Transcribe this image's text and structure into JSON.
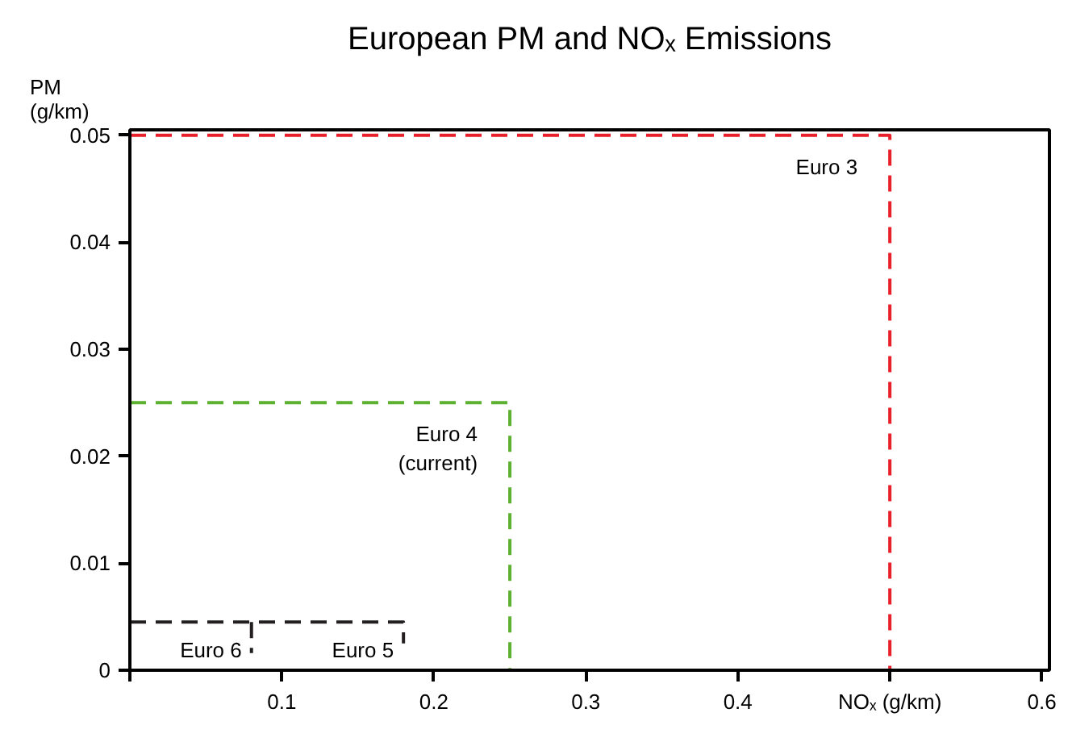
{
  "chart_data": {
    "type": "line",
    "title": "European PM and NOₓ Emissions",
    "ylabel": "PM (g/km)",
    "xlim": [
      0,
      0.605
    ],
    "ylim": [
      0,
      0.0505
    ],
    "xticks": [
      {
        "value": 0,
        "label": null
      },
      0.1,
      0.2,
      0.3,
      0.4,
      {
        "value": 0.5,
        "label": "NOₓ (g/km)"
      },
      0.6
    ],
    "yticks": [
      0,
      0.01,
      0.02,
      0.03,
      0.04,
      0.05
    ],
    "grid": false,
    "line_style": "dashed",
    "marker": "none",
    "series": [
      {
        "name": "Euro 3",
        "color": "#e8202a",
        "x": [
          0,
          0.5,
          0.5
        ],
        "values": [
          0.05,
          0.05,
          0
        ]
      },
      {
        "name": "Euro 4\n(current)",
        "color": "#5db030",
        "x": [
          0,
          0.25,
          0.25
        ],
        "values": [
          0.025,
          0.025,
          0
        ]
      },
      {
        "name": "Euro 5",
        "color": "#231f20",
        "x": [
          0,
          0.18,
          0.18
        ],
        "values": [
          0.0045,
          0.0045,
          0.0025
        ]
      },
      {
        "name": "Euro 6",
        "color": "#231f20",
        "x": [
          0.08,
          0.08
        ],
        "values": [
          0.0045,
          0.0016
        ]
      }
    ]
  }
}
